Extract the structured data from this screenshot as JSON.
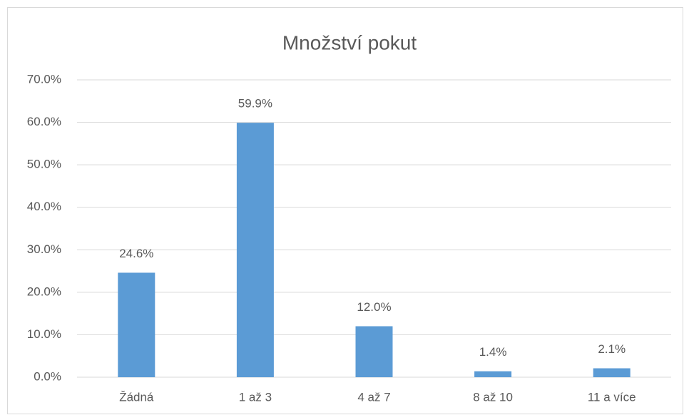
{
  "chart_data": {
    "type": "bar",
    "title": "Množství pokut",
    "categories": [
      "Žádná",
      "1 až 3",
      "4 až 7",
      "8 až 10",
      "11 a více"
    ],
    "values": [
      24.6,
      59.9,
      12.0,
      1.4,
      2.1
    ],
    "value_labels": [
      "24.6%",
      "59.9%",
      "12.0%",
      "1.4%",
      "2.1%"
    ],
    "color": "#5b9bd5",
    "ylim": [
      0,
      70
    ],
    "yticks": [
      {
        "value": 0,
        "label": "0.0%"
      },
      {
        "value": 10,
        "label": "10.0%"
      },
      {
        "value": 20,
        "label": "20.0%"
      },
      {
        "value": 30,
        "label": "30.0%"
      },
      {
        "value": 40,
        "label": "40.0%"
      },
      {
        "value": 50,
        "label": "50.0%"
      },
      {
        "value": 60,
        "label": "60.0%"
      },
      {
        "value": 70,
        "label": "70.0%"
      }
    ],
    "grid": true
  }
}
